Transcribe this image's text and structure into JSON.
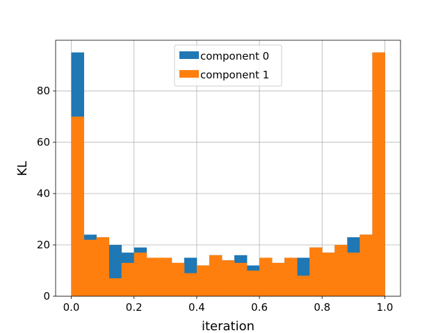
{
  "chart_data": {
    "type": "bar",
    "title": "",
    "xlabel": "iteration",
    "ylabel": "KL",
    "xlim": [
      -0.05,
      1.05
    ],
    "ylim": [
      0,
      99.75
    ],
    "bin_edges": [
      0.0,
      0.04,
      0.08,
      0.12,
      0.16,
      0.2,
      0.24,
      0.28,
      0.32,
      0.36,
      0.4,
      0.44,
      0.48,
      0.52,
      0.56,
      0.6,
      0.64,
      0.68,
      0.72,
      0.76,
      0.8,
      0.84,
      0.88,
      0.92,
      0.96,
      1.0
    ],
    "x_ticks": [
      0.0,
      0.2,
      0.4,
      0.6,
      0.8,
      1.0
    ],
    "x_tick_labels": [
      "0.0",
      "0.2",
      "0.4",
      "0.6",
      "0.8",
      "1.0"
    ],
    "y_ticks": [
      0,
      20,
      40,
      60,
      80
    ],
    "y_tick_labels": [
      "0",
      "20",
      "40",
      "60",
      "80"
    ],
    "grid": true,
    "legend_position": "top-center",
    "series": [
      {
        "name": "component 0",
        "color": "#1f77b4",
        "values": [
          95,
          24,
          23,
          20,
          17,
          19,
          15,
          15,
          13,
          15,
          12,
          16,
          14,
          16,
          12,
          15,
          13,
          15,
          15,
          19,
          17,
          20,
          23,
          24,
          95
        ]
      },
      {
        "name": "component 1",
        "color": "#ff7f0e",
        "values": [
          70,
          22,
          23,
          7,
          13,
          17,
          15,
          15,
          13,
          9,
          12,
          16,
          14,
          13,
          10,
          15,
          13,
          15,
          8,
          19,
          17,
          20,
          17,
          24,
          95
        ]
      }
    ]
  }
}
